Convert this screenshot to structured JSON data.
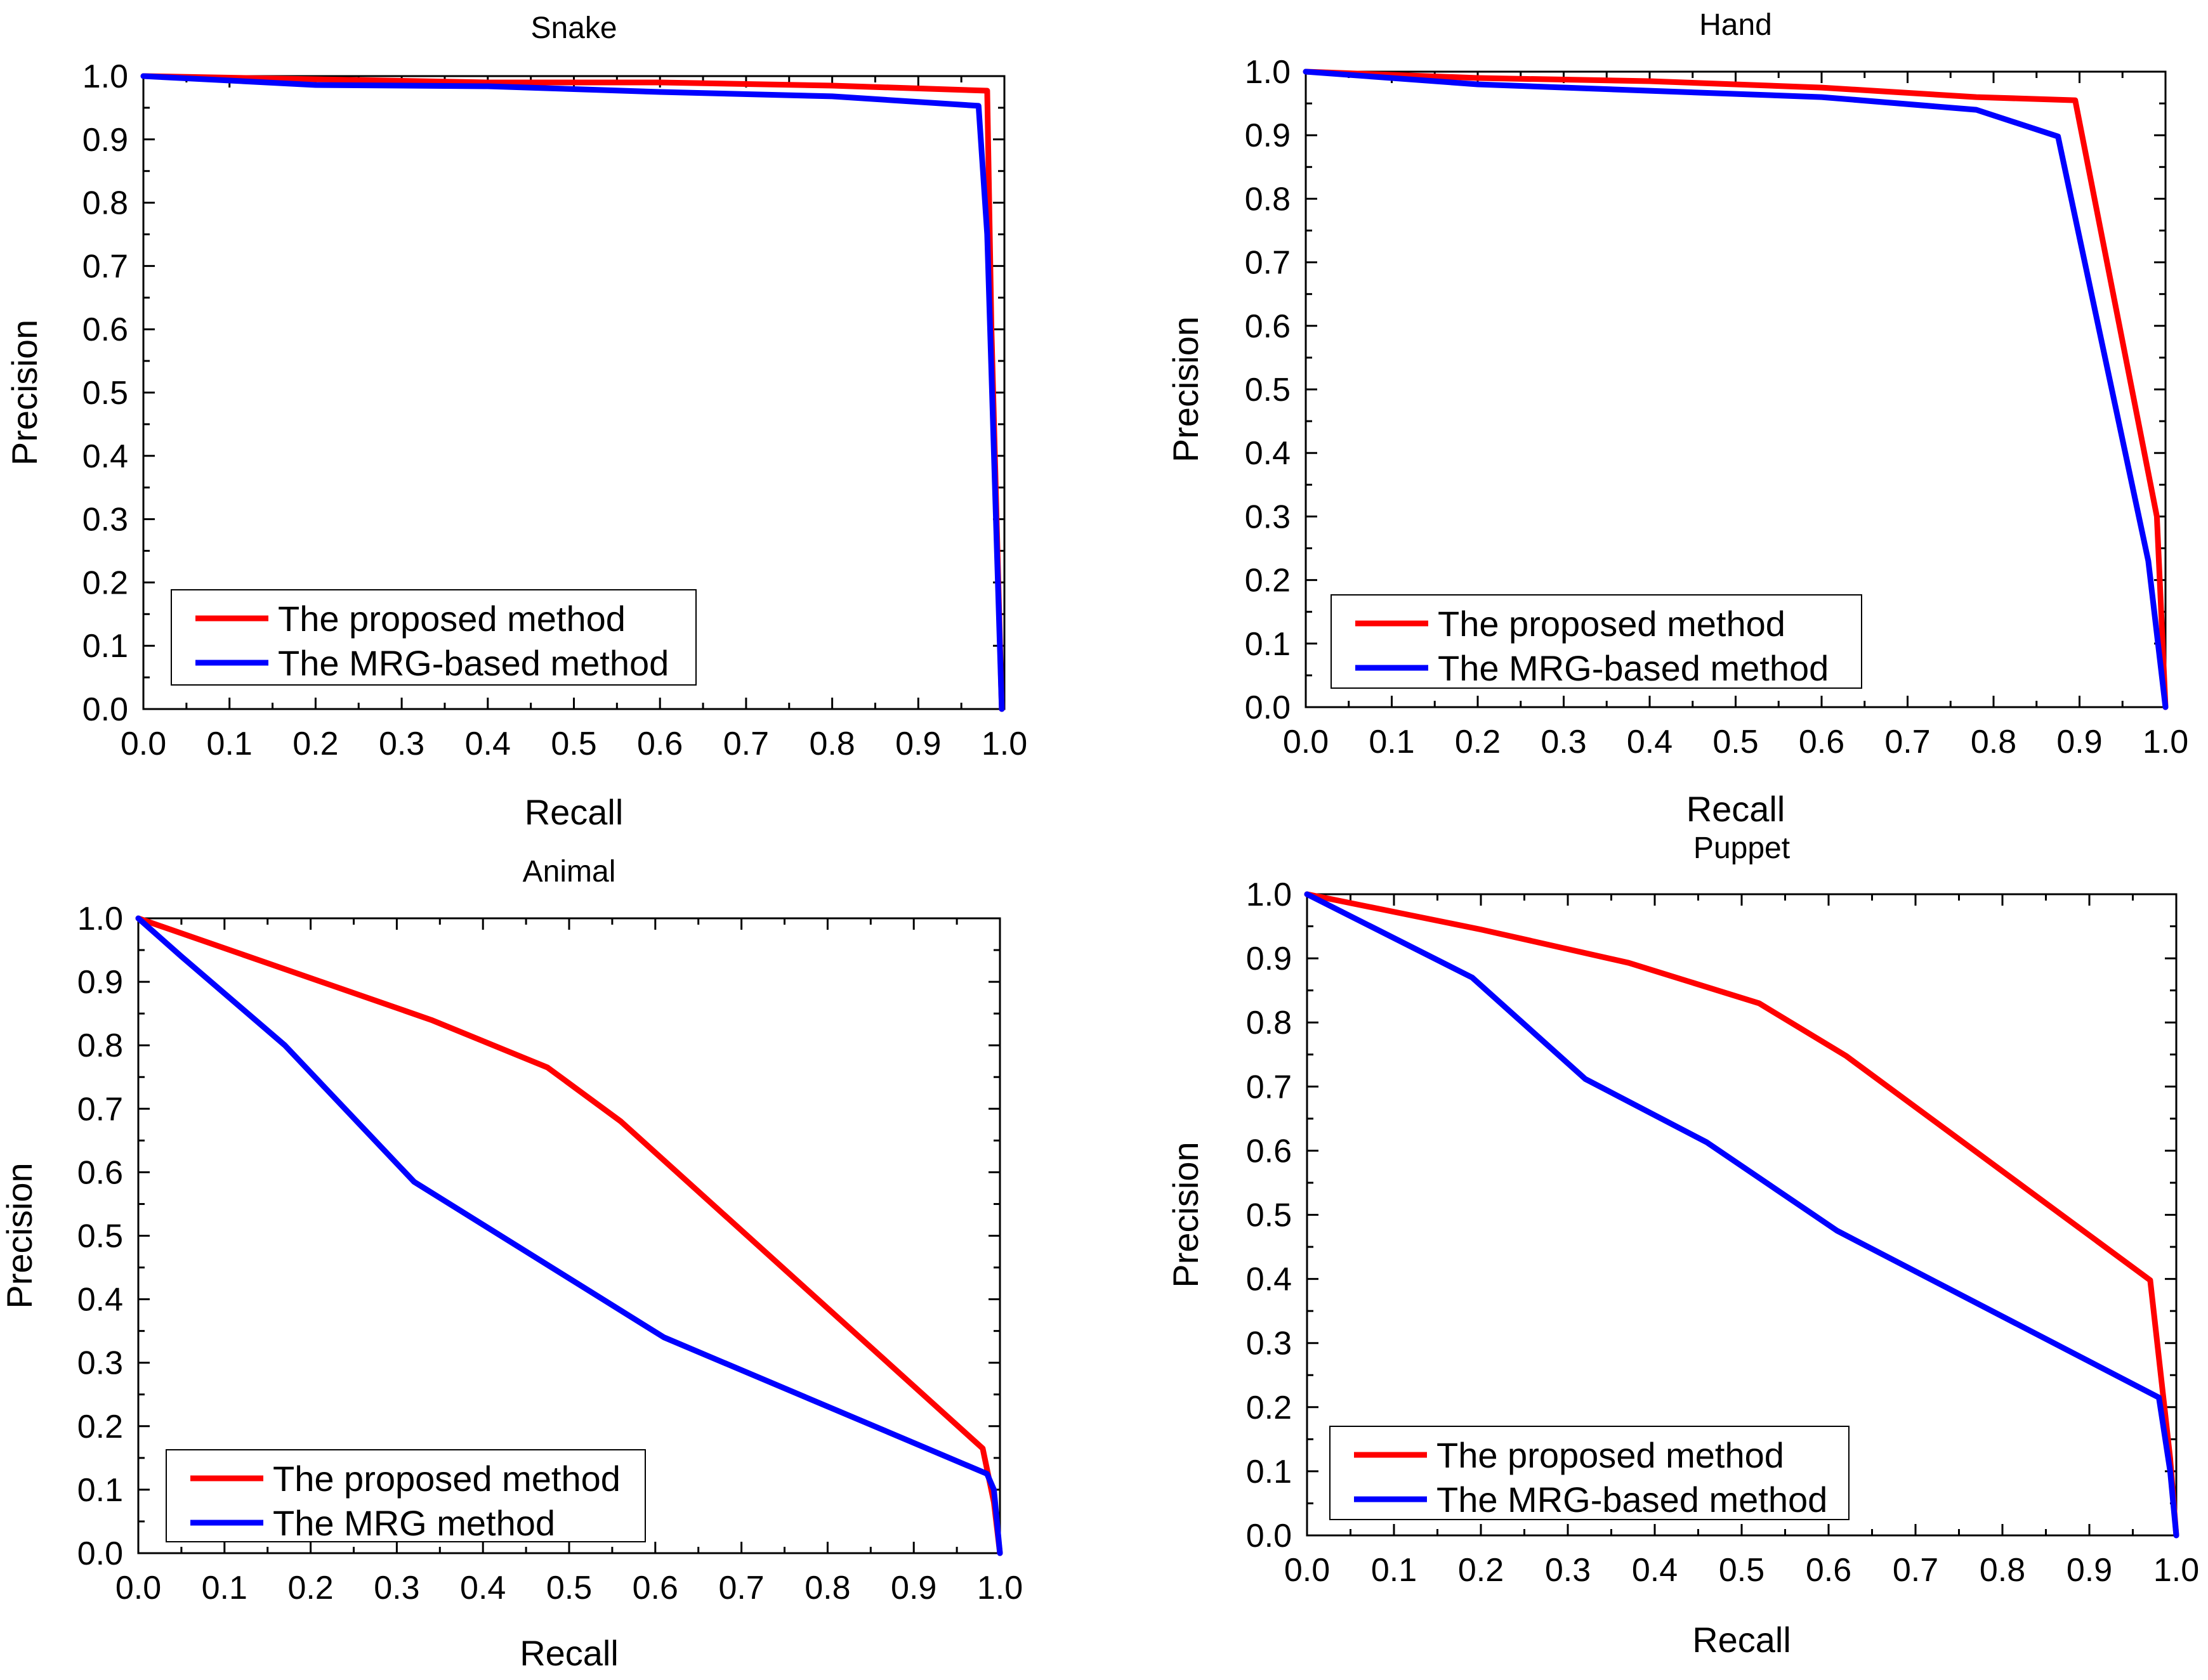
{
  "chart_data": [
    {
      "type": "line",
      "title": "Snake",
      "xlabel": "Recall",
      "ylabel": "Precision",
      "xlim": [
        0,
        1
      ],
      "ylim": [
        0,
        1
      ],
      "x_ticks": [
        "0.0",
        "0.1",
        "0.2",
        "0.3",
        "0.4",
        "0.5",
        "0.6",
        "0.7",
        "0.8",
        "0.9",
        "1.0"
      ],
      "y_ticks": [
        "0.0",
        "0.1",
        "0.2",
        "0.3",
        "0.4",
        "0.5",
        "0.6",
        "0.7",
        "0.8",
        "0.9",
        "1.0"
      ],
      "legend_position": "bottom-left",
      "series": [
        {
          "name": "The proposed method",
          "color": "#ff0000",
          "points": [
            [
              0,
              1.0
            ],
            [
              0.2,
              0.995
            ],
            [
              0.4,
              0.99
            ],
            [
              0.6,
              0.99
            ],
            [
              0.8,
              0.985
            ],
            [
              0.98,
              0.977
            ],
            [
              0.985,
              0.6
            ],
            [
              0.997,
              0.0
            ]
          ]
        },
        {
          "name": "The MRG-based method",
          "color": "#0000ff",
          "points": [
            [
              0,
              1.0
            ],
            [
              0.2,
              0.986
            ],
            [
              0.4,
              0.984
            ],
            [
              0.6,
              0.975
            ],
            [
              0.8,
              0.968
            ],
            [
              0.97,
              0.953
            ],
            [
              0.98,
              0.75
            ],
            [
              0.997,
              0.0
            ]
          ]
        }
      ]
    },
    {
      "type": "line",
      "title": "Hand",
      "xlabel": "Recall",
      "ylabel": "Precision",
      "xlim": [
        0,
        1
      ],
      "ylim": [
        0,
        1
      ],
      "x_ticks": [
        "0.0",
        "0.1",
        "0.2",
        "0.3",
        "0.4",
        "0.5",
        "0.6",
        "0.7",
        "0.8",
        "0.9",
        "1.0"
      ],
      "y_ticks": [
        "0.0",
        "0.1",
        "0.2",
        "0.3",
        "0.4",
        "0.5",
        "0.6",
        "0.7",
        "0.8",
        "0.9",
        "1.0"
      ],
      "legend_position": "bottom-left",
      "series": [
        {
          "name": "The proposed method",
          "color": "#ff0000",
          "points": [
            [
              0,
              1.0
            ],
            [
              0.2,
              0.99
            ],
            [
              0.4,
              0.985
            ],
            [
              0.6,
              0.975
            ],
            [
              0.78,
              0.96
            ],
            [
              0.895,
              0.955
            ],
            [
              0.99,
              0.3
            ],
            [
              1.0,
              0.0
            ]
          ]
        },
        {
          "name": "The MRG-based method",
          "color": "#0000ff",
          "points": [
            [
              0,
              1.0
            ],
            [
              0.2,
              0.98
            ],
            [
              0.4,
              0.97
            ],
            [
              0.6,
              0.96
            ],
            [
              0.78,
              0.94
            ],
            [
              0.875,
              0.898
            ],
            [
              0.98,
              0.23
            ],
            [
              1.0,
              0.0
            ]
          ]
        }
      ]
    },
    {
      "type": "line",
      "title": "Animal",
      "xlabel": "Recall",
      "ylabel": "Precision",
      "xlim": [
        0,
        1
      ],
      "ylim": [
        0,
        1
      ],
      "x_ticks": [
        "0.0",
        "0.1",
        "0.2",
        "0.3",
        "0.4",
        "0.5",
        "0.6",
        "0.7",
        "0.8",
        "0.9",
        "1.0"
      ],
      "y_ticks": [
        "0.0",
        "0.1",
        "0.2",
        "0.3",
        "0.4",
        "0.5",
        "0.6",
        "0.7",
        "0.8",
        "0.9",
        "1.0"
      ],
      "legend_position": "bottom-left",
      "series": [
        {
          "name": "The proposed method",
          "color": "#ff0000",
          "points": [
            [
              0,
              1.0
            ],
            [
              0.34,
              0.84
            ],
            [
              0.475,
              0.765
            ],
            [
              0.56,
              0.68
            ],
            [
              0.98,
              0.165
            ],
            [
              0.993,
              0.08
            ],
            [
              1.0,
              0.0
            ]
          ]
        },
        {
          "name": "The MRG method",
          "color": "#0000ff",
          "points": [
            [
              0,
              1.0
            ],
            [
              0.05,
              0.94
            ],
            [
              0.17,
              0.8
            ],
            [
              0.32,
              0.585
            ],
            [
              0.61,
              0.34
            ],
            [
              0.985,
              0.125
            ],
            [
              0.993,
              0.1
            ],
            [
              1.0,
              0.0
            ]
          ]
        }
      ]
    },
    {
      "type": "line",
      "title": "Puppet",
      "xlabel": "Recall",
      "ylabel": "Precision",
      "xlim": [
        0,
        1
      ],
      "ylim": [
        0,
        1
      ],
      "x_ticks": [
        "0.0",
        "0.1",
        "0.2",
        "0.3",
        "0.4",
        "0.5",
        "0.6",
        "0.7",
        "0.8",
        "0.9",
        "1.0"
      ],
      "y_ticks": [
        "0.0",
        "0.1",
        "0.2",
        "0.3",
        "0.4",
        "0.5",
        "0.6",
        "0.7",
        "0.8",
        "0.9",
        "1.0"
      ],
      "legend_position": "bottom-left",
      "series": [
        {
          "name": "The proposed method",
          "color": "#ff0000",
          "points": [
            [
              0,
              1.0
            ],
            [
              0.2,
              0.945
            ],
            [
              0.37,
              0.893
            ],
            [
              0.52,
              0.83
            ],
            [
              0.62,
              0.748
            ],
            [
              0.97,
              0.398
            ],
            [
              0.993,
              0.12
            ],
            [
              1.0,
              0.0
            ]
          ]
        },
        {
          "name": "The MRG-based method",
          "color": "#0000ff",
          "points": [
            [
              0,
              1.0
            ],
            [
              0.19,
              0.87
            ],
            [
              0.32,
              0.712
            ],
            [
              0.46,
              0.613
            ],
            [
              0.61,
              0.475
            ],
            [
              0.98,
              0.215
            ],
            [
              0.993,
              0.1
            ],
            [
              1.0,
              0.0
            ]
          ]
        }
      ]
    }
  ]
}
